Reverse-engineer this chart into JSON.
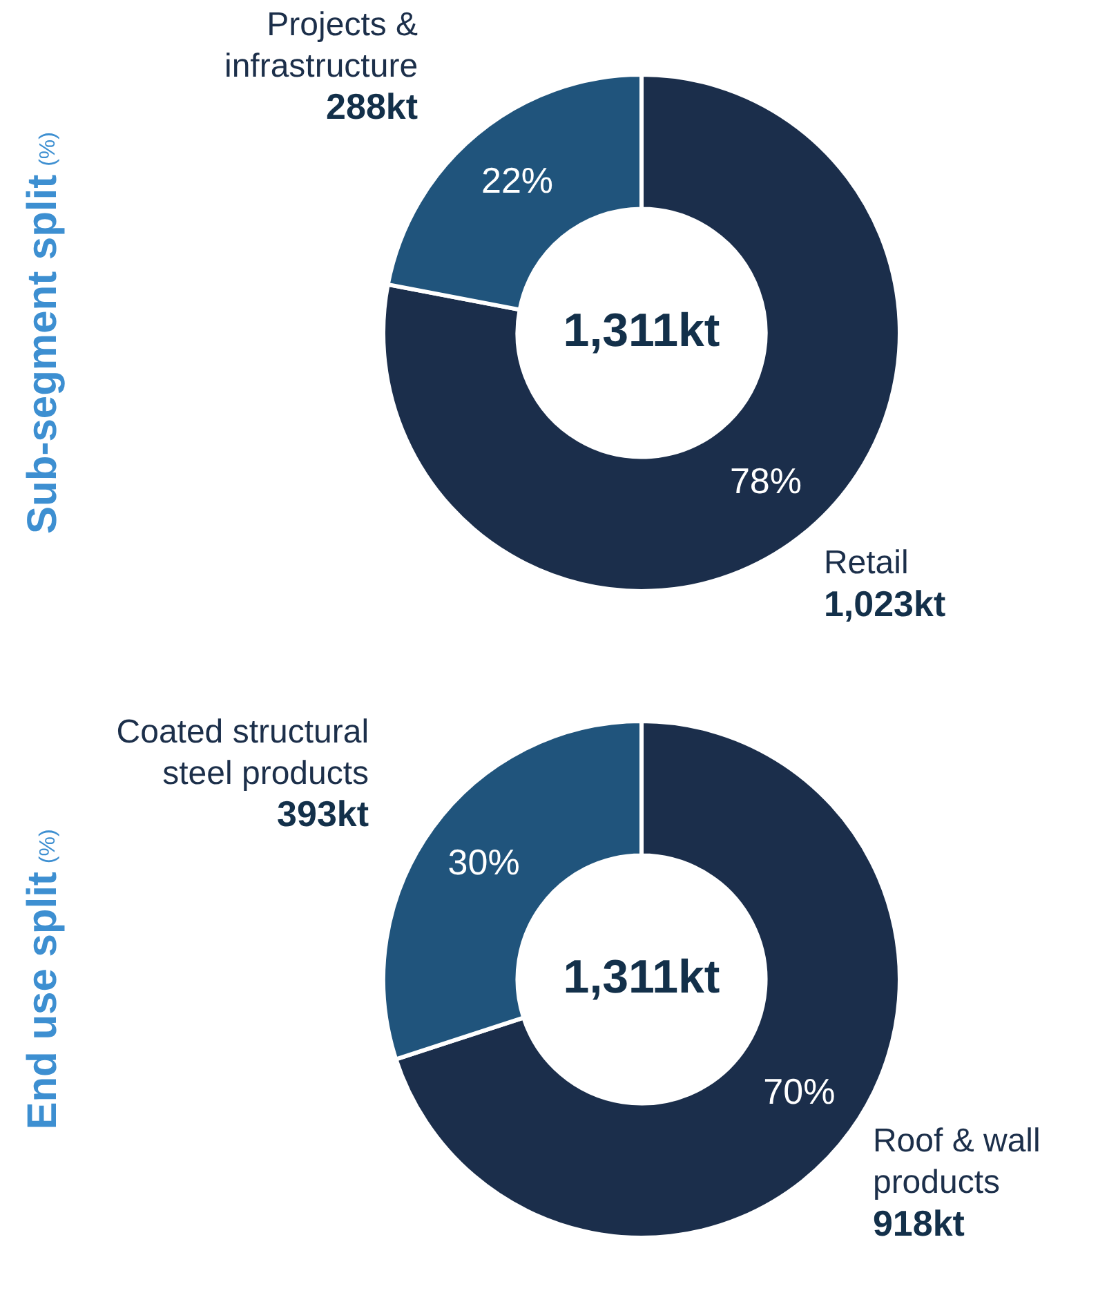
{
  "chart_data": [
    {
      "type": "donut",
      "title": "Sub-segment split",
      "subtitle": "(%)",
      "categories": [
        "Retail",
        "Projects & infrastructure"
      ],
      "values": [
        78,
        22
      ],
      "value_labels": [
        "78%",
        "22%"
      ],
      "colors": [
        "#1b2e4b",
        "#20547c"
      ],
      "annotations": [
        "1,311kt",
        "1,023kt",
        "288kt"
      ],
      "legend": false
    },
    {
      "type": "donut",
      "title": "End use split",
      "subtitle": "(%)",
      "categories": [
        "Roof & wall products",
        "Coated structural steel products"
      ],
      "values": [
        70,
        30
      ],
      "value_labels": [
        "70%",
        "30%"
      ],
      "colors": [
        "#1b2e4b",
        "#20547c"
      ],
      "annotations": [
        "1,311kt",
        "918kt",
        "393kt"
      ],
      "legend": false
    }
  ]
}
